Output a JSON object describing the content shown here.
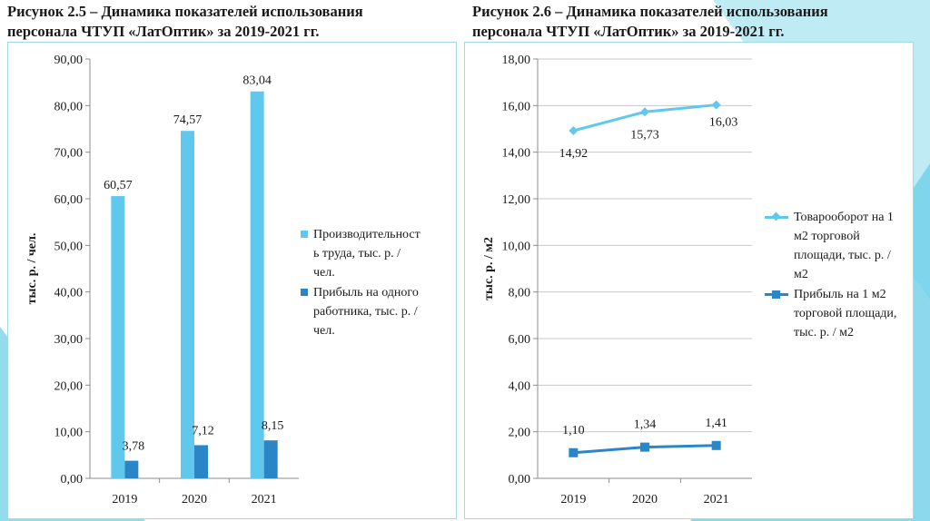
{
  "colors": {
    "productivity": "#5fc8ec",
    "profit": "#2b86c8",
    "turnover_line": "#5fc8ec",
    "profit_area_line": "#2b86c8",
    "panel_border": "#9fdbe0",
    "deco_a": "#6fd0e8",
    "deco_b": "#a8e4f0"
  },
  "icons": {
    "bar_swatch": "square-swatch-icon",
    "turnover_marker": "diamond-marker-icon",
    "profit_marker": "square-marker-icon"
  },
  "chart_data": [
    {
      "type": "bar",
      "title": "Рисунок 2.5 – Динамика показателей использования персонала ЧТУП «ЛатОптик» за 2019-2021 гг.",
      "title_lines": [
        "Рисунок 2.5 – Динамика показателей использования",
        "персонала ЧТУП «ЛатОптик» за 2019-2021 гг."
      ],
      "categories": [
        "2019",
        "2020",
        "2021"
      ],
      "series": [
        {
          "name": "Производительность труда, тыс. р. / чел.",
          "legend_lines": [
            "Производительност",
            "ь труда, тыс. р. /",
            "чел."
          ],
          "values": [
            60.57,
            74.57,
            83.04
          ],
          "labels": [
            "60,57",
            "74,57",
            "83,04"
          ]
        },
        {
          "name": "Прибыль на одного работника, тыс. р. / чел.",
          "legend_lines": [
            "Прибыль на одного",
            "работника, тыс. р. /",
            "чел."
          ],
          "values": [
            3.78,
            7.12,
            8.15
          ],
          "labels": [
            "3,78",
            "7,12",
            "8,15"
          ]
        }
      ],
      "ylabel": "тыс. р. / чел.",
      "xlabel": "",
      "ylim": [
        0,
        90
      ],
      "yticks": [
        "0,00",
        "10,00",
        "20,00",
        "30,00",
        "40,00",
        "50,00",
        "60,00",
        "70,00",
        "80,00",
        "90,00"
      ],
      "grid": false,
      "legend_position": "right"
    },
    {
      "type": "line",
      "title": "Рисунок 2.6 – Динамика показателей использования персонала ЧТУП «ЛатОптик» за 2019-2021 гг.",
      "title_lines": [
        "Рисунок 2.6 – Динамика показателей использования",
        "персонала ЧТУП «ЛатОптик» за 2019-2021 гг."
      ],
      "categories": [
        "2019",
        "2020",
        "2021"
      ],
      "series": [
        {
          "name": "Товарооборот на 1 м2 торговой площади, тыс. р. / м2",
          "legend_lines": [
            "Товарооборот на 1",
            "м2 торговой",
            "площади, тыс. р. /",
            "м2"
          ],
          "values": [
            14.92,
            15.73,
            16.03
          ],
          "labels": [
            "14,92",
            "15,73",
            "16,03"
          ],
          "marker": "diamond"
        },
        {
          "name": "Прибыль на 1 м2 торговой площади, тыс. р. / м2",
          "legend_lines": [
            "Прибыль на 1 м2",
            "торговой площади,",
            "тыс. р. / м2"
          ],
          "values": [
            1.1,
            1.34,
            1.41
          ],
          "labels": [
            "1,10",
            "1,34",
            "1,41"
          ],
          "marker": "square"
        }
      ],
      "ylabel": "тыс. р. / м2",
      "xlabel": "",
      "ylim": [
        0,
        18
      ],
      "yticks": [
        "0,00",
        "2,00",
        "4,00",
        "6,00",
        "8,00",
        "10,00",
        "12,00",
        "14,00",
        "16,00",
        "18,00"
      ],
      "grid": true,
      "legend_position": "right"
    }
  ]
}
